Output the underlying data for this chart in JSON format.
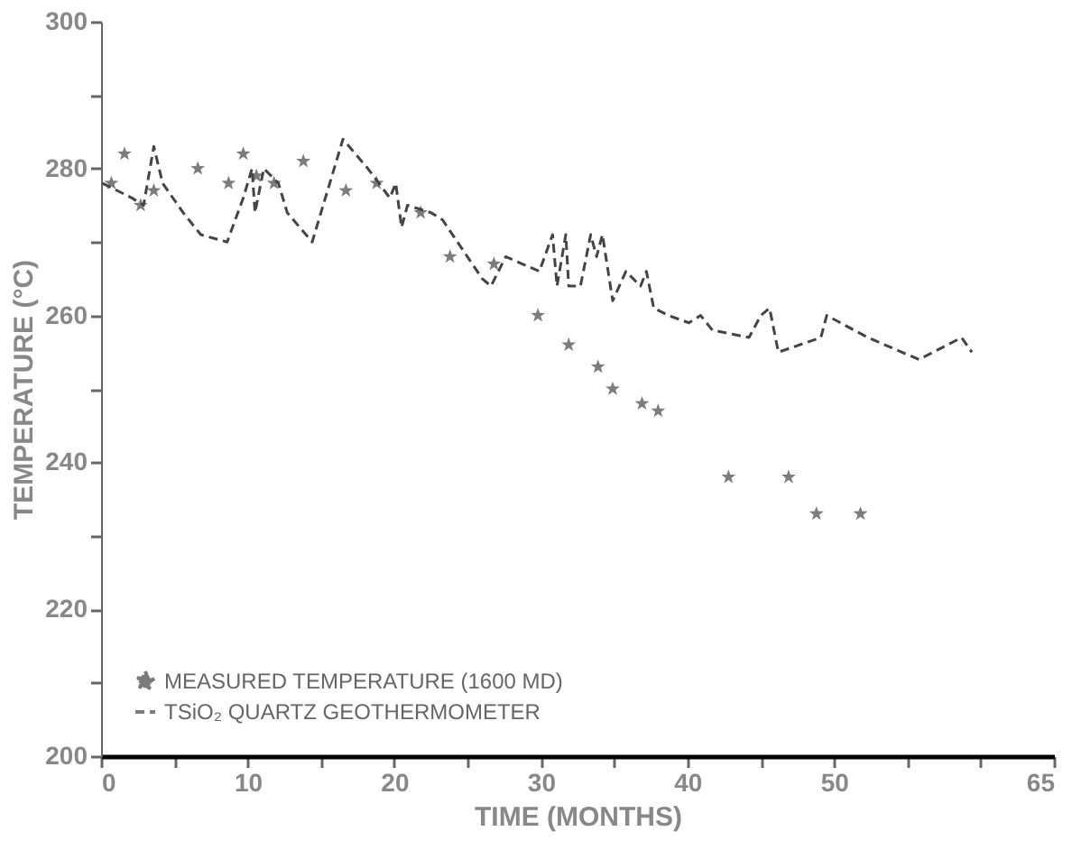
{
  "chart_data": {
    "type": "line",
    "xlabel": "TIME (MONTHS)",
    "ylabel": "TEMPERATURE (°C)",
    "xlim": [
      0,
      65
    ],
    "ylim": [
      200,
      300
    ],
    "xticks": [
      0,
      {
        "value": 5,
        "label": null
      },
      10,
      {
        "value": 15,
        "label": null
      },
      20,
      {
        "value": 25,
        "label": null
      },
      30,
      {
        "value": 35,
        "label": null
      },
      40,
      {
        "value": 45,
        "label": null
      },
      50,
      {
        "value": 55,
        "label": null
      },
      {
        "value": 60,
        "label": null
      },
      65
    ],
    "yticks": [
      200,
      {
        "value": 210,
        "label": null
      },
      220,
      {
        "value": 230,
        "label": null
      },
      240,
      {
        "value": 250,
        "label": null
      },
      260,
      {
        "value": 270,
        "label": null
      },
      280,
      {
        "value": 290,
        "label": null
      },
      300
    ],
    "grid": false,
    "legend": "bottom left",
    "series": [
      {
        "name": "MEASURED TEMPERATURE (1600 MD)",
        "type": "scatter",
        "marker": "star",
        "color": "#444444",
        "x": [
          0.7,
          1.6,
          2.7,
          3.6,
          6.6,
          8.7,
          9.7,
          10.6,
          11.8,
          13.8,
          16.7,
          18.8,
          21.8,
          23.8,
          26.8,
          29.8,
          31.9,
          33.9,
          34.9,
          36.9,
          38.0,
          42.8,
          46.9,
          48.8,
          51.8
        ],
        "values": [
          278,
          282,
          275,
          277,
          280,
          278,
          282,
          279,
          278,
          281,
          277,
          278,
          274,
          268,
          267,
          260,
          256,
          253,
          250,
          248,
          247,
          238,
          238,
          233,
          233
        ]
      },
      {
        "name": "TSiO₂ QUARTZ GEOTHERMOMETER",
        "marker": "none",
        "line_style": "dashed",
        "color": "#444444",
        "x": [
          0.1,
          2.1,
          2.9,
          3.6,
          4.2,
          5.6,
          6.8,
          8.6,
          9.7,
          10.3,
          10.5,
          11.1,
          12.1,
          12.7,
          14.4,
          16.5,
          18.2,
          19.7,
          20.1,
          20.5,
          20.9,
          22.5,
          23.3,
          26.0,
          26.6,
          27.6,
          29.9,
          30.8,
          31.1,
          31.7,
          31.9,
          32.7,
          33.4,
          33.8,
          34.2,
          34.9,
          35.8,
          36.8,
          37.2,
          37.7,
          38.7,
          40.1,
          40.9,
          41.7,
          44.2,
          45.0,
          45.6,
          46.2,
          49.1,
          49.5,
          52.3,
          55.8,
          58.7,
          59.4
        ],
        "values": [
          278,
          276,
          275,
          283,
          278,
          274,
          271,
          270,
          276,
          280,
          274,
          280,
          278,
          274,
          270,
          284,
          280,
          276,
          278,
          272,
          275,
          274,
          273,
          265,
          264,
          268,
          266,
          271,
          264,
          271,
          264,
          264,
          271,
          268,
          271,
          262,
          266,
          264,
          266,
          261,
          260,
          259,
          260,
          258,
          257,
          260,
          261,
          255,
          257,
          260,
          257,
          254,
          257,
          255
        ]
      }
    ]
  }
}
